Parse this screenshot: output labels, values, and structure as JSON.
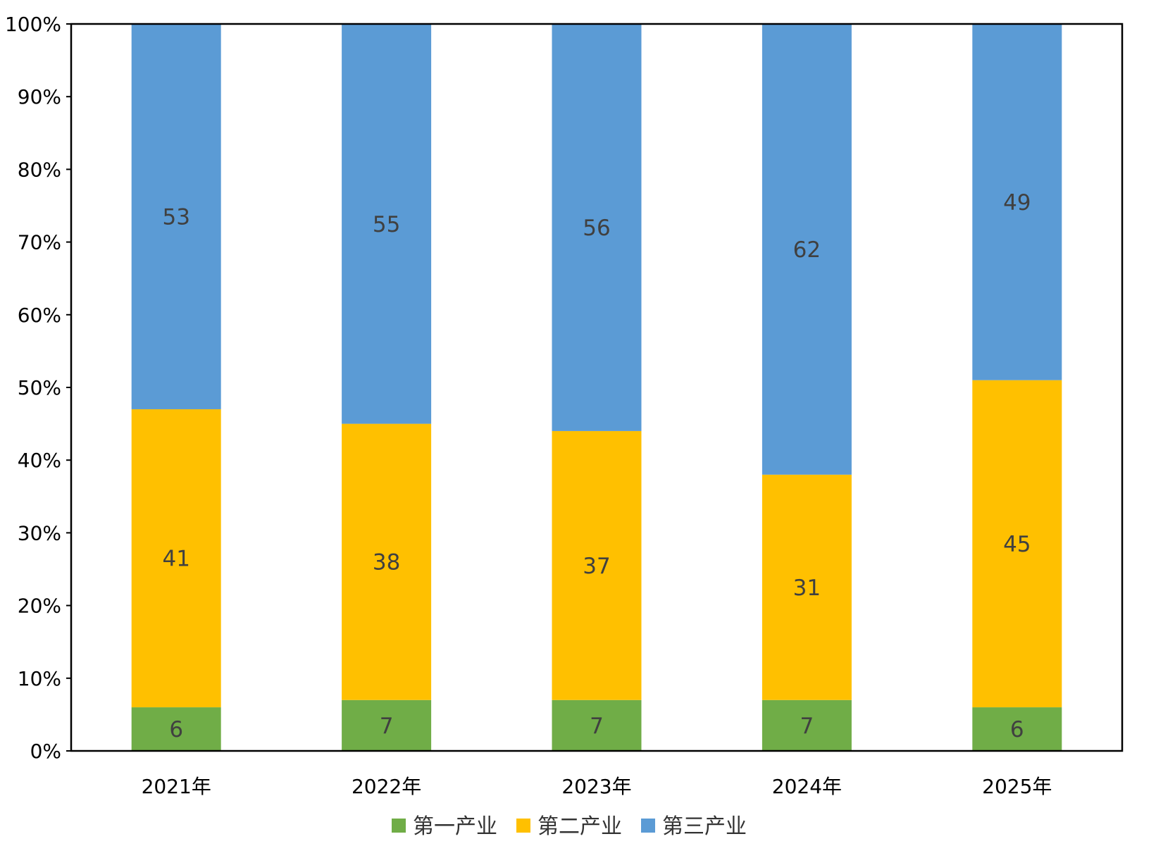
{
  "chart_data": {
    "type": "bar",
    "stacked": true,
    "categories": [
      "2021年",
      "2022年",
      "2023年",
      "2024年",
      "2025年"
    ],
    "series": [
      {
        "name": "第一产业",
        "color": "#70AD47",
        "values": [
          6,
          7,
          7,
          7,
          6
        ]
      },
      {
        "name": "第二产业",
        "color": "#FFC000",
        "values": [
          41,
          38,
          37,
          31,
          45
        ]
      },
      {
        "name": "第三产业",
        "color": "#5B9BD5",
        "values": [
          53,
          55,
          56,
          62,
          49
        ]
      }
    ],
    "y_ticks": [
      "0%",
      "10%",
      "20%",
      "30%",
      "40%",
      "50%",
      "60%",
      "70%",
      "80%",
      "90%",
      "100%"
    ],
    "ylim": [
      0,
      100
    ],
    "title": "",
    "xlabel": "",
    "ylabel": "",
    "grid": false,
    "legend_position": "bottom",
    "data_labels": true
  }
}
